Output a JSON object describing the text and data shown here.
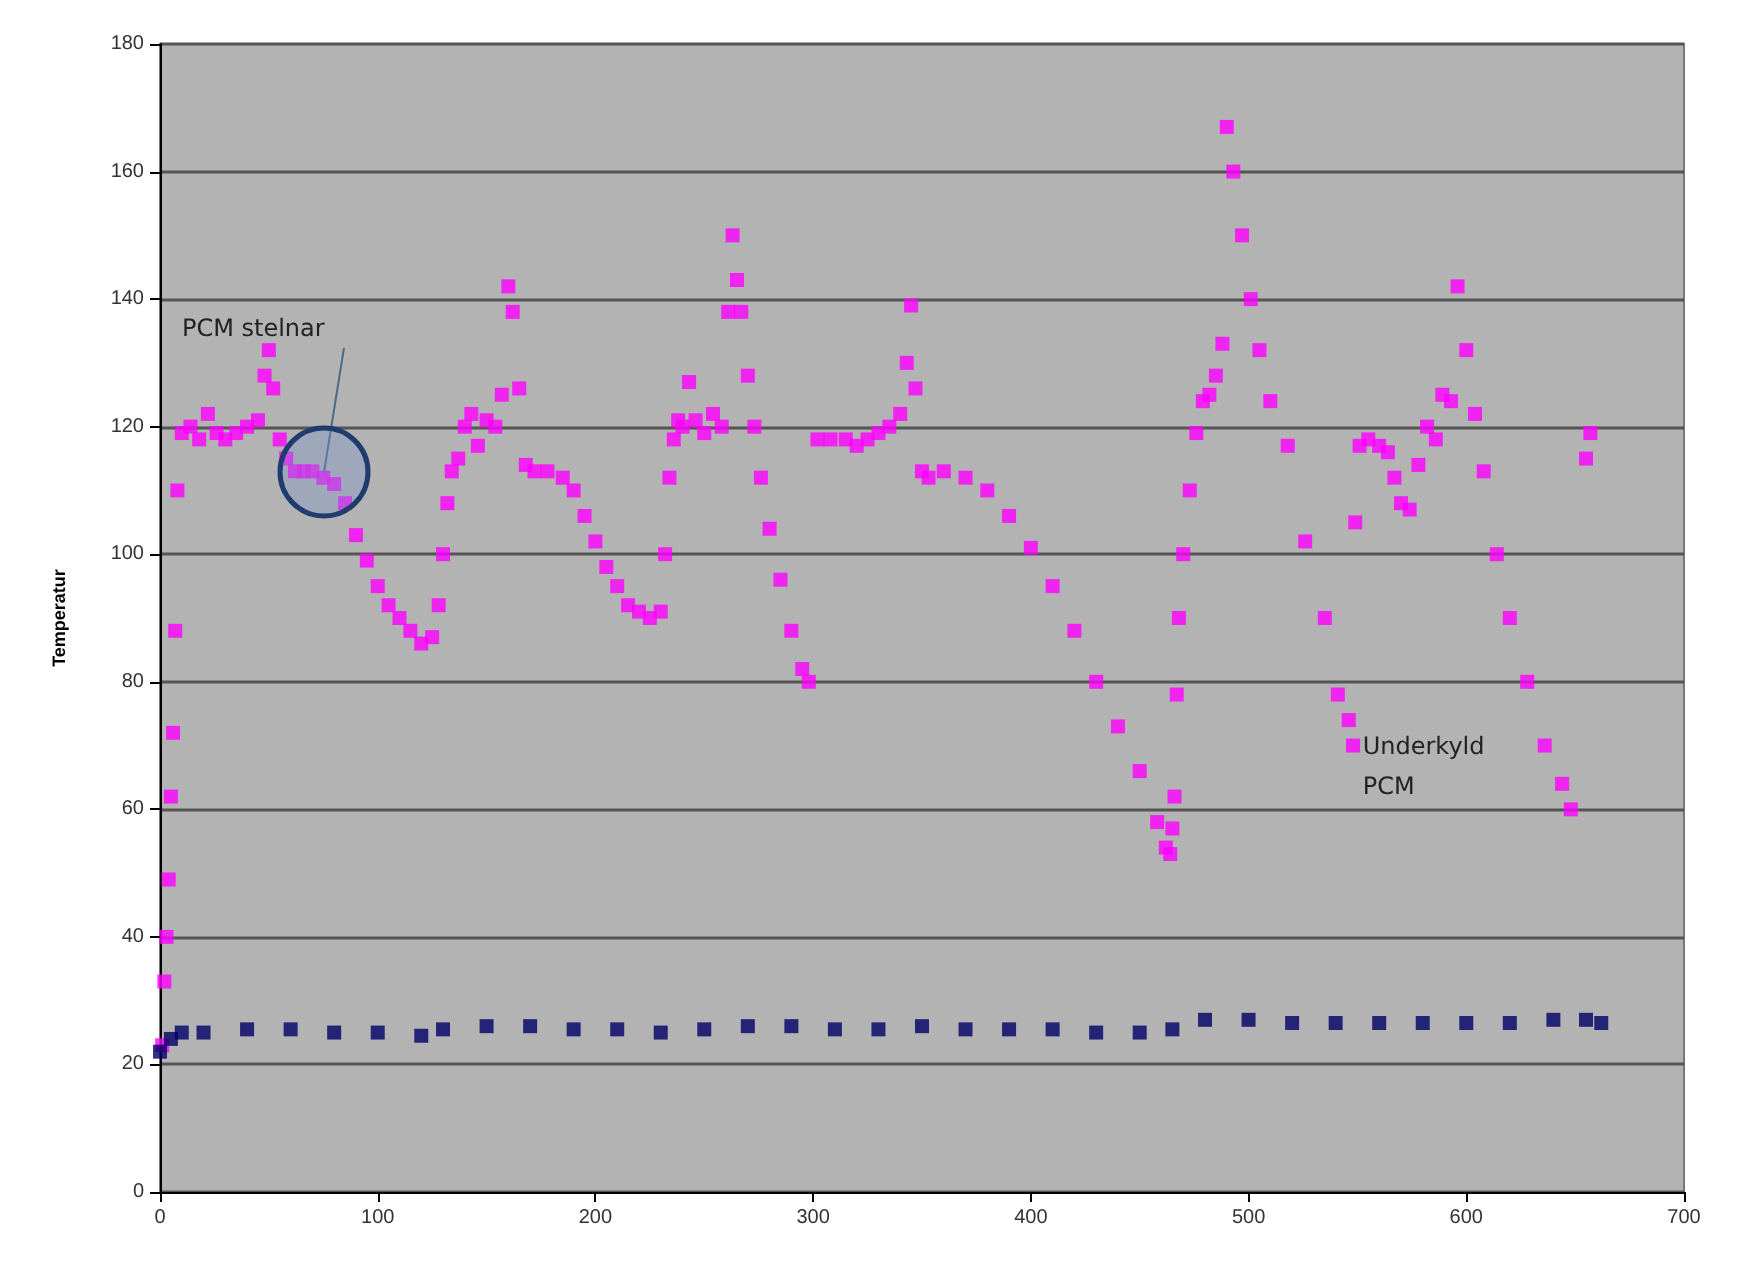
{
  "chart_data": {
    "type": "scatter",
    "ylabel": "Temperatur",
    "xlim": [
      0,
      700
    ],
    "xticks": [
      0,
      100,
      200,
      300,
      400,
      500,
      600,
      700
    ],
    "ylim": [
      0,
      180
    ],
    "yticks": [
      0,
      20,
      40,
      60,
      80,
      100,
      120,
      140,
      160,
      180
    ],
    "grid": "y",
    "marker": "square",
    "annotations": [
      {
        "text": "PCM stelnar",
        "x": 75,
        "y": 113
      },
      {
        "text": "Underkyld\nPCM",
        "x": 546,
        "y": 70
      }
    ],
    "series": [
      {
        "color": "#ff00ff",
        "x": [
          1,
          2,
          3,
          4,
          5,
          6,
          7,
          8,
          10,
          14,
          18,
          22,
          26,
          30,
          35,
          40,
          45,
          48,
          50,
          52,
          55,
          58,
          62,
          66,
          70,
          75,
          80,
          85,
          90,
          95,
          100,
          105,
          110,
          115,
          120,
          125,
          128,
          130,
          132,
          134,
          137,
          140,
          143,
          146,
          150,
          154,
          157,
          160,
          162,
          165,
          168,
          172,
          178,
          185,
          190,
          195,
          200,
          205,
          210,
          215,
          220,
          225,
          230,
          232,
          234,
          236,
          238,
          240,
          243,
          246,
          250,
          254,
          258,
          261,
          263,
          265,
          267,
          270,
          273,
          276,
          280,
          285,
          290,
          295,
          298,
          302,
          308,
          315,
          320,
          325,
          330,
          335,
          340,
          343,
          345,
          347,
          350,
          353,
          360,
          370,
          380,
          390,
          400,
          410,
          420,
          430,
          440,
          450,
          458,
          462,
          464,
          465,
          466,
          467,
          468,
          470,
          473,
          476,
          479,
          482,
          485,
          488,
          490,
          493,
          497,
          501,
          505,
          510,
          518,
          526,
          535,
          541,
          546,
          548,
          549,
          551,
          555,
          560,
          564,
          567,
          570,
          574,
          578,
          582,
          586,
          589,
          593,
          596,
          600,
          604,
          608,
          614,
          620,
          628,
          636,
          644,
          648,
          655,
          657
        ],
        "values": [
          23,
          33,
          40,
          49,
          62,
          72,
          88,
          110,
          119,
          120,
          118,
          122,
          119,
          118,
          119,
          120,
          121,
          128,
          132,
          126,
          118,
          115,
          113,
          113,
          113,
          112,
          111,
          108,
          103,
          99,
          95,
          92,
          90,
          88,
          86,
          87,
          92,
          100,
          108,
          113,
          115,
          120,
          122,
          117,
          121,
          120,
          125,
          142,
          138,
          126,
          114,
          113,
          113,
          112,
          110,
          106,
          102,
          98,
          95,
          92,
          91,
          90,
          91,
          100,
          112,
          118,
          121,
          120,
          127,
          121,
          119,
          122,
          120,
          138,
          150,
          143,
          138,
          128,
          120,
          112,
          104,
          96,
          88,
          82,
          80,
          118,
          118,
          118,
          117,
          118,
          119,
          120,
          122,
          130,
          139,
          126,
          113,
          112,
          113,
          112,
          110,
          106,
          101,
          95,
          88,
          80,
          73,
          66,
          58,
          54,
          53,
          57,
          62,
          78,
          90,
          100,
          110,
          119,
          124,
          125,
          128,
          133,
          167,
          160,
          150,
          140,
          132,
          124,
          117,
          102,
          90,
          78,
          74,
          70,
          105,
          117,
          118,
          117,
          116,
          112,
          108,
          107,
          114,
          120,
          118,
          125,
          124,
          142,
          132,
          122,
          113,
          100,
          90,
          80,
          70,
          64,
          60,
          115,
          119
        ]
      },
      {
        "color": "#000066",
        "x": [
          0,
          5,
          10,
          20,
          40,
          60,
          80,
          100,
          120,
          130,
          150,
          170,
          190,
          210,
          230,
          250,
          270,
          290,
          310,
          330,
          350,
          370,
          390,
          410,
          430,
          450,
          465,
          480,
          500,
          520,
          540,
          560,
          580,
          600,
          620,
          640,
          655,
          662
        ],
        "values": [
          22,
          24,
          25,
          25,
          25.5,
          25.5,
          25,
          25,
          24.5,
          25.5,
          26,
          26,
          25.5,
          25.5,
          25,
          25.5,
          26,
          26,
          25.5,
          25.5,
          26,
          25.5,
          25.5,
          25.5,
          25,
          25,
          25.5,
          27,
          27,
          26.5,
          26.5,
          26.5,
          26.5,
          26.5,
          26.5,
          27,
          27,
          26.5
        ]
      }
    ]
  }
}
